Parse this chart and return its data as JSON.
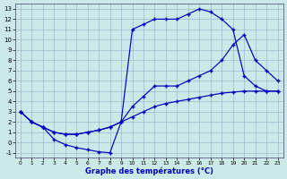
{
  "title": "Graphe des températures (°C)",
  "bg_color": "#cce8e8",
  "grid_color": "#99bbcc",
  "line_color": "#0000bb",
  "marker": "+",
  "markersize": 3.5,
  "markeredgewidth": 1.0,
  "linewidth": 0.85,
  "xlim": [
    -0.5,
    23.5
  ],
  "ylim": [
    -1.5,
    13.5
  ],
  "xticks": [
    0,
    1,
    2,
    3,
    4,
    5,
    6,
    7,
    8,
    9,
    10,
    11,
    12,
    13,
    14,
    15,
    16,
    17,
    18,
    19,
    20,
    21,
    22,
    23
  ],
  "yticks": [
    -1,
    0,
    1,
    2,
    3,
    4,
    5,
    6,
    7,
    8,
    9,
    10,
    11,
    12,
    13
  ],
  "line1_x": [
    0,
    1,
    2,
    3,
    4,
    5,
    6,
    7,
    8,
    9,
    10,
    11,
    12,
    13,
    14,
    15,
    16,
    17,
    18,
    19,
    20,
    21,
    22,
    23
  ],
  "line1_y": [
    3.0,
    2.0,
    1.5,
    0.3,
    -0.2,
    -0.5,
    -0.7,
    -0.9,
    -1.0,
    2.0,
    11.0,
    11.5,
    12.0,
    12.0,
    12.0,
    12.5,
    13.0,
    12.7,
    12.0,
    11.0,
    6.5,
    5.5,
    5.0,
    5.0
  ],
  "line2_x": [
    0,
    1,
    2,
    3,
    4,
    5,
    6,
    7,
    8,
    9,
    10,
    11,
    12,
    13,
    14,
    15,
    16,
    17,
    18,
    19,
    20,
    21,
    22,
    23
  ],
  "line2_y": [
    3.0,
    2.0,
    1.5,
    1.0,
    0.8,
    0.8,
    1.0,
    1.2,
    1.5,
    2.0,
    3.5,
    4.5,
    5.5,
    5.5,
    5.5,
    6.0,
    6.5,
    7.0,
    8.0,
    9.5,
    10.5,
    8.0,
    7.0,
    6.0
  ],
  "line3_x": [
    0,
    1,
    2,
    3,
    4,
    5,
    6,
    7,
    8,
    9,
    10,
    11,
    12,
    13,
    14,
    15,
    16,
    17,
    18,
    19,
    20,
    21,
    22,
    23
  ],
  "line3_y": [
    3.0,
    2.0,
    1.5,
    1.0,
    0.8,
    0.8,
    1.0,
    1.2,
    1.5,
    2.0,
    2.5,
    3.0,
    3.5,
    3.8,
    4.0,
    4.2,
    4.4,
    4.6,
    4.8,
    4.9,
    5.0,
    5.0,
    5.0,
    5.0
  ]
}
